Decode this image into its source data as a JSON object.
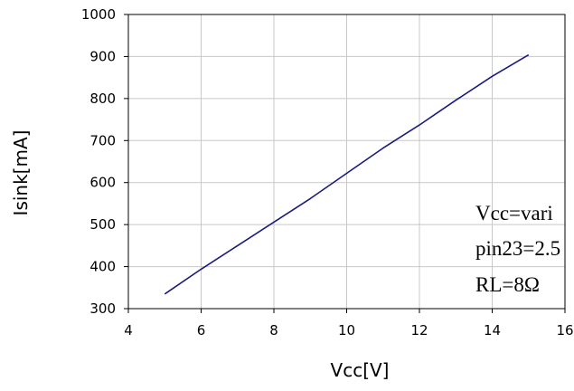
{
  "chart_data": {
    "type": "line",
    "xlabel": "Vcc[V]",
    "ylabel": "Isink[mA]",
    "xlim": [
      4,
      16
    ],
    "ylim": [
      300,
      1000
    ],
    "xticks": [
      4,
      6,
      8,
      10,
      12,
      14,
      16
    ],
    "yticks": [
      300,
      400,
      500,
      600,
      700,
      800,
      900,
      1000
    ],
    "grid": true,
    "series": [
      {
        "color": "#1a1a80",
        "x": [
          5,
          6,
          7,
          8,
          9,
          10,
          11,
          12,
          13,
          14,
          15
        ],
        "y": [
          335,
          394,
          450,
          506,
          562,
          622,
          682,
          737,
          796,
          853,
          904
        ]
      }
    ],
    "annotations": [
      "Vcc=vari",
      "pin23=2.5",
      "RL=8Ω"
    ]
  }
}
